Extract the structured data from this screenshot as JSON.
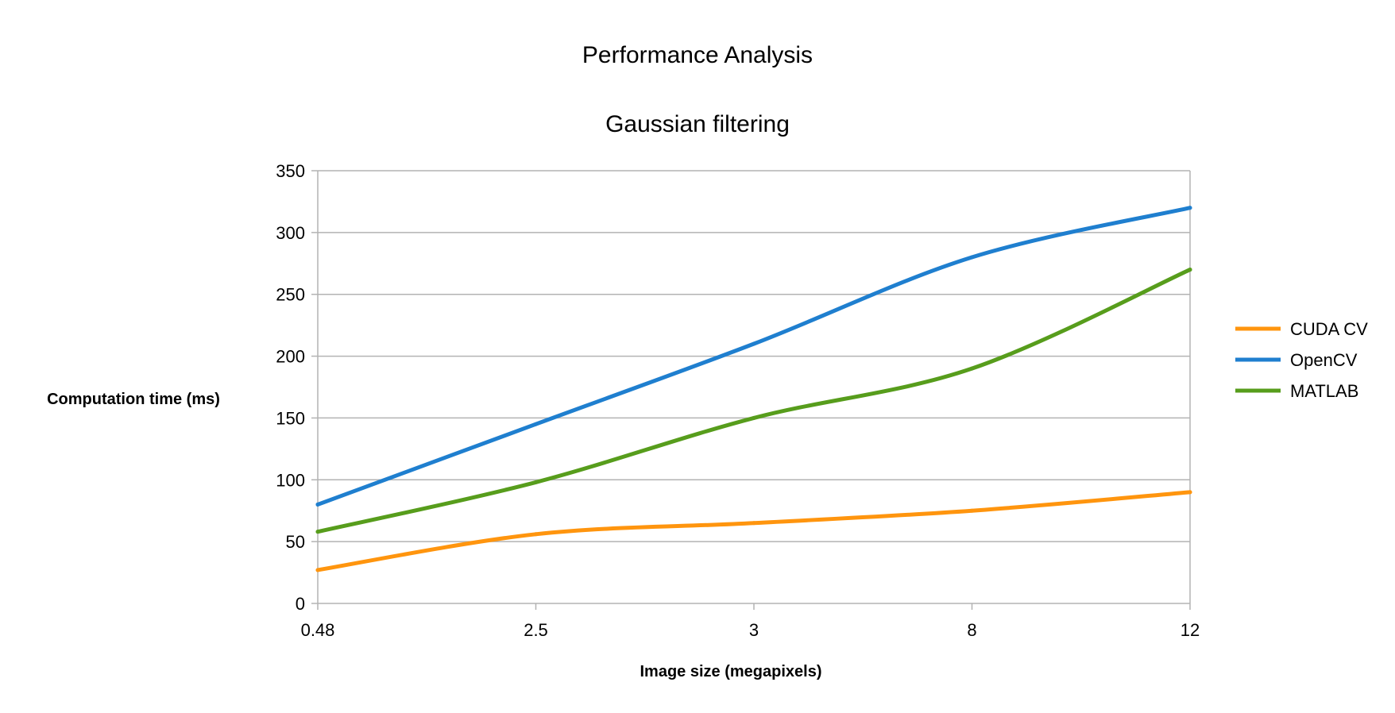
{
  "chart_data": {
    "type": "line",
    "title": "Performance Analysis",
    "subtitle": "Gaussian filtering",
    "xlabel": "Image size (megapixels)",
    "ylabel": "Computation time (ms)",
    "categories": [
      "0.48",
      "2.5",
      "3",
      "8",
      "12"
    ],
    "ylim": [
      0,
      350
    ],
    "yticks": [
      0,
      50,
      100,
      150,
      200,
      250,
      300,
      350
    ],
    "grid": true,
    "legend_position": "right",
    "series": [
      {
        "name": "CUDA CV",
        "color": "#ff950e",
        "values": [
          27,
          56,
          65,
          75,
          90
        ]
      },
      {
        "name": "OpenCV",
        "color": "#1f7fcf",
        "values": [
          80,
          145,
          210,
          280,
          320
        ]
      },
      {
        "name": "MATLAB",
        "color": "#579d1c",
        "values": [
          58,
          98,
          150,
          190,
          270
        ]
      }
    ]
  }
}
